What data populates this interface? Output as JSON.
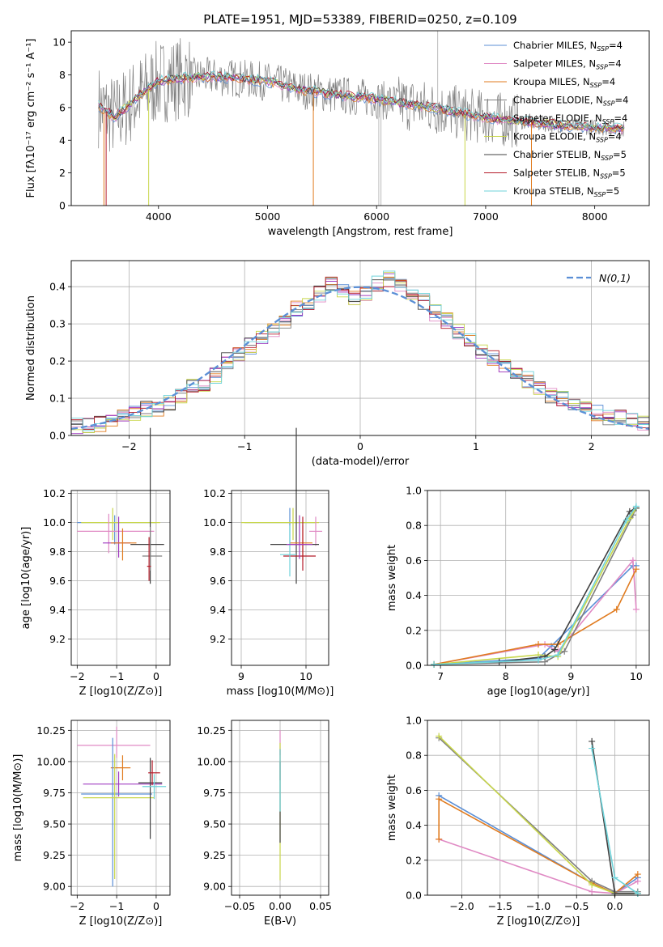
{
  "figure_title": "PLATE=1951, MJD=53389, FIBERID=0250, z=0.109",
  "chart_data": [
    {
      "id": "spectrum",
      "type": "line",
      "title": "PLATE=1951, MJD=53389, FIBERID=0250, z=0.109",
      "xlabel": "wavelength [Angstrom, rest frame]",
      "ylabel": "Flux [fλ10⁻¹⁷ erg cm⁻² s⁻¹ A⁻¹]",
      "xlim": [
        3200,
        8500
      ],
      "ylim": [
        0,
        10.7
      ],
      "xticks": [
        4000,
        5000,
        6000,
        7000,
        8000
      ],
      "yticks": [
        0,
        2,
        4,
        6,
        8,
        10
      ],
      "grid": false,
      "legend_position": "top-right",
      "observed_color": "#808080",
      "spectrum_continuum": {
        "x": [
          3450,
          3600,
          3800,
          4000,
          4200,
          4400,
          4700,
          5000,
          5300,
          5600,
          5900,
          6200,
          6500,
          6800,
          7100,
          7400,
          7700,
          8000,
          8270
        ],
        "y": [
          6.1,
          5.4,
          6.6,
          7.6,
          7.8,
          7.9,
          7.8,
          7.6,
          7.1,
          6.8,
          6.6,
          6.3,
          6.0,
          5.6,
          5.3,
          5.1,
          4.9,
          4.8,
          4.7
        ]
      },
      "series": [
        {
          "name": "Chabrier MILES, N_SSP=4",
          "label_main": "Chabrier MILES, N",
          "label_sub": "SSP",
          "label_tail": "=4",
          "color": "#5b8fd6"
        },
        {
          "name": "Salpeter MILES, N_SSP=4",
          "label_main": "Salpeter MILES, N",
          "label_sub": "SSP",
          "label_tail": "=4",
          "color": "#e08ac4"
        },
        {
          "name": "Kroupa MILES, N_SSP=4",
          "label_main": "Kroupa MILES, N",
          "label_sub": "SSP",
          "label_tail": "=4",
          "color": "#e07b1f"
        },
        {
          "name": "Chabrier ELODIE, N_SSP=4",
          "label_main": "Chabrier ELODIE, N",
          "label_sub": "SSP",
          "label_tail": "=4",
          "color": "#7f7f7f"
        },
        {
          "name": "Salpeter ELODIE, N_SSP=4",
          "label_main": "Salpeter ELODIE, N",
          "label_sub": "SSP",
          "label_tail": "=4",
          "color": "#a03cc0"
        },
        {
          "name": "Kroupa ELODIE, N_SSP=4",
          "label_main": "Kroupa ELODIE, N",
          "label_sub": "SSP",
          "label_tail": "=4",
          "color": "#c8d64a"
        },
        {
          "name": "Chabrier STELIB, N_SSP=5",
          "label_main": "Chabrier STELIB, N",
          "label_sub": "SSP",
          "label_tail": "=5",
          "color": "#404040"
        },
        {
          "name": "Salpeter STELIB, N_SSP=5",
          "label_main": "Salpeter STELIB, N",
          "label_sub": "SSP",
          "label_tail": "=5",
          "color": "#b51c2a"
        },
        {
          "name": "Kroupa STELIB, N_SSP=5",
          "label_main": "Kroupa STELIB, N",
          "label_sub": "SSP",
          "label_tail": "=5",
          "color": "#6fd3da"
        }
      ],
      "dropouts": [
        {
          "x": 3500,
          "color": "#e07b1f"
        },
        {
          "x": 3520,
          "color": "#b51c2a"
        },
        {
          "x": 3910,
          "color": "#c8d64a"
        },
        {
          "x": 5420,
          "color": "#e07b1f"
        },
        {
          "x": 6020,
          "color": "#bbbbbb"
        },
        {
          "x": 6040,
          "color": "#bbbbbb"
        },
        {
          "x": 6810,
          "color": "#c8d64a"
        },
        {
          "x": 7420,
          "color": "#e07b1f"
        }
      ],
      "spike": {
        "x": 6560,
        "color": "#bbbbbb"
      }
    },
    {
      "id": "residuals",
      "type": "histogram",
      "xlabel": "(data-model)/error",
      "ylabel": "Normed distribution",
      "xlim": [
        -2.5,
        2.5
      ],
      "ylim": [
        0,
        0.47
      ],
      "xticks": [
        -2,
        -1,
        0,
        1,
        2
      ],
      "yticks": [
        0.0,
        0.1,
        0.2,
        0.3,
        0.4
      ],
      "grid": true,
      "legend_position": "top-right",
      "reference_curve": {
        "name": "N(0,1)",
        "color": "#5b8fd6"
      },
      "bin_width": 0.1,
      "series_colors": [
        "#5b8fd6",
        "#e08ac4",
        "#e07b1f",
        "#7f7f7f",
        "#a03cc0",
        "#c8d64a",
        "#404040",
        "#b51c2a",
        "#6fd3da"
      ],
      "bins_example": {
        "x_start": [
          -2.5,
          -2.4,
          -2.3,
          -2.2,
          -2.1,
          -2.0,
          -1.9,
          -1.8,
          -1.7,
          -1.6,
          -1.5,
          -1.4,
          -1.3,
          -1.2,
          -1.1,
          -1.0,
          -0.9,
          -0.8,
          -0.7,
          -0.6,
          -0.5,
          -0.4,
          -0.3,
          -0.2,
          -0.1,
          0.0,
          0.1,
          0.2,
          0.3,
          0.4,
          0.5,
          0.6,
          0.7,
          0.8,
          0.9,
          1.0,
          1.1,
          1.2,
          1.3,
          1.4,
          1.5,
          1.6,
          1.7,
          1.8,
          1.9,
          2.0,
          2.1,
          2.2,
          2.3,
          2.4
        ],
        "values": [
          0.025,
          0.03,
          0.03,
          0.045,
          0.05,
          0.06,
          0.07,
          0.07,
          0.09,
          0.11,
          0.13,
          0.14,
          0.16,
          0.2,
          0.22,
          0.24,
          0.26,
          0.28,
          0.31,
          0.34,
          0.35,
          0.38,
          0.41,
          0.39,
          0.37,
          0.38,
          0.41,
          0.42,
          0.4,
          0.38,
          0.36,
          0.33,
          0.31,
          0.28,
          0.26,
          0.23,
          0.21,
          0.19,
          0.16,
          0.15,
          0.13,
          0.11,
          0.1,
          0.08,
          0.07,
          0.06,
          0.05,
          0.05,
          0.04,
          0.035
        ]
      }
    },
    {
      "id": "age_vs_z",
      "type": "errorbar",
      "xlabel": "Z [log10(Z/Z⊙)]",
      "ylabel": "age [log10(age/yr)]",
      "xlim": [
        -2.15,
        0.35
      ],
      "ylim": [
        9.02,
        10.22
      ],
      "xticks": [
        -2,
        -1,
        0
      ],
      "yticks": [
        9.2,
        9.4,
        9.6,
        9.8,
        10.0,
        10.2
      ],
      "grid": true,
      "points": [
        {
          "x": -1.05,
          "y": 10.0,
          "xerr": [
            0.95,
            1.05
          ],
          "yerr": [
            0.15,
            0.05
          ],
          "color": "#5b8fd6"
        },
        {
          "x": -1.1,
          "y": 10.0,
          "xerr": [
            0.8,
            1.2
          ],
          "yerr": [
            0.12,
            0.1
          ],
          "color": "#c8d64a"
        },
        {
          "x": -1.2,
          "y": 9.94,
          "xerr": [
            0.8,
            1.15
          ],
          "yerr": [
            0.15,
            0.12
          ],
          "color": "#e08ac4"
        },
        {
          "x": -0.95,
          "y": 9.86,
          "xerr": [
            0.4,
            0.3
          ],
          "yerr": [
            0.1,
            0.18
          ],
          "color": "#a03cc0"
        },
        {
          "x": -0.85,
          "y": 9.86,
          "xerr": [
            0.3,
            0.35
          ],
          "yerr": [
            0.12,
            0.1
          ],
          "color": "#e07b1f"
        },
        {
          "x": -0.15,
          "y": 9.85,
          "xerr": [
            0.5,
            0.35
          ],
          "yerr": [
            0.27,
            0.8
          ],
          "color": "#404040"
        },
        {
          "x": -0.15,
          "y": 9.77,
          "xerr": [
            0.2,
            0.3
          ],
          "yerr": [
            0.1,
            0.2
          ],
          "color": "#7f7f7f"
        },
        {
          "x": -0.18,
          "y": 9.7,
          "xerr": [
            0.05,
            0.05
          ],
          "yerr": [
            0.1,
            0.2
          ],
          "color": "#b51c2a"
        }
      ]
    },
    {
      "id": "age_vs_mass",
      "type": "errorbar",
      "xlabel": "mass [log10(M/M⊙)]",
      "ylabel": "",
      "xlim": [
        8.85,
        10.35
      ],
      "ylim": [
        9.02,
        10.22
      ],
      "xticks": [
        9,
        10
      ],
      "yticks": [
        9.2,
        9.4,
        9.6,
        9.8,
        10.0,
        10.2
      ],
      "grid": true,
      "points": [
        {
          "x": 9.75,
          "y": 10.0,
          "xerr": [
            0.7,
            0.4
          ],
          "yerr": [
            0.15,
            0.1
          ],
          "color": "#5b8fd6"
        },
        {
          "x": 9.8,
          "y": 10.0,
          "xerr": [
            0.8,
            0.4
          ],
          "yerr": [
            0.12,
            0.1
          ],
          "color": "#c8d64a"
        },
        {
          "x": 10.15,
          "y": 9.94,
          "xerr": [
            0.1,
            0.1
          ],
          "yerr": [
            0.1,
            0.1
          ],
          "color": "#e08ac4"
        },
        {
          "x": 9.85,
          "y": 9.85,
          "xerr": [
            0.4,
            0.35
          ],
          "yerr": [
            0.27,
            0.8
          ],
          "color": "#404040"
        },
        {
          "x": 9.95,
          "y": 9.86,
          "xerr": [
            0.2,
            0.15
          ],
          "yerr": [
            0.12,
            0.12
          ],
          "color": "#e07b1f"
        },
        {
          "x": 9.95,
          "y": 9.77,
          "xerr": [
            0.3,
            0.2
          ],
          "yerr": [
            0.1,
            0.27
          ],
          "color": "#b51c2a"
        },
        {
          "x": 9.75,
          "y": 9.78,
          "xerr": [
            0.15,
            0.1
          ],
          "yerr": [
            0.15,
            0.2
          ],
          "color": "#6fd3da"
        },
        {
          "x": 9.9,
          "y": 9.85,
          "xerr": [
            0.2,
            0.2
          ],
          "yerr": [
            0.1,
            0.2
          ],
          "color": "#a03cc0"
        }
      ]
    },
    {
      "id": "weight_vs_age",
      "type": "line",
      "xlabel": "age [log10(age/yr)]",
      "ylabel": "mass weight",
      "xlim": [
        6.8,
        10.2
      ],
      "ylim": [
        0,
        1.0
      ],
      "xticks": [
        7,
        8,
        9,
        10
      ],
      "yticks": [
        0.0,
        0.2,
        0.4,
        0.6,
        0.8,
        1.0
      ],
      "grid": true,
      "series": [
        {
          "color": "#5b8fd6",
          "x": [
            6.9,
            8.5,
            8.7,
            9.95,
            10.0
          ],
          "y": [
            0.005,
            0.04,
            0.11,
            0.57,
            0.57
          ]
        },
        {
          "color": "#e08ac4",
          "x": [
            6.9,
            8.6,
            8.8,
            9.95,
            10.0
          ],
          "y": [
            0.005,
            0.12,
            0.08,
            0.6,
            0.32
          ]
        },
        {
          "color": "#e07b1f",
          "x": [
            6.9,
            8.5,
            8.8,
            9.7,
            10.0
          ],
          "y": [
            0.005,
            0.12,
            0.12,
            0.32,
            0.55
          ]
        },
        {
          "color": "#7f7f7f",
          "x": [
            6.9,
            8.6,
            8.9,
            9.95,
            10.0
          ],
          "y": [
            0.005,
            0.02,
            0.08,
            0.86,
            0.9
          ]
        },
        {
          "color": "#c8d64a",
          "x": [
            6.9,
            8.5,
            8.8,
            9.9,
            10.0
          ],
          "y": [
            0.005,
            0.06,
            0.05,
            0.84,
            0.9
          ]
        },
        {
          "color": "#404040",
          "x": [
            7.9,
            8.6,
            8.75,
            9.9,
            10.0
          ],
          "y": [
            0.02,
            0.05,
            0.09,
            0.88,
            0.9
          ]
        },
        {
          "color": "#6fd3da",
          "x": [
            6.9,
            8.5,
            8.8,
            9.85,
            10.0
          ],
          "y": [
            0.005,
            0.03,
            0.06,
            0.83,
            0.91
          ]
        }
      ]
    },
    {
      "id": "mass_vs_z",
      "type": "errorbar",
      "xlabel": "Z [log10(Z/Z⊙)]",
      "ylabel": "mass [log10(M/M⊙)]",
      "xlim": [
        -2.15,
        0.35
      ],
      "ylim": [
        8.93,
        10.33
      ],
      "xticks": [
        -2,
        -1,
        0
      ],
      "yticks": [
        9.0,
        9.25,
        9.5,
        9.75,
        10.0,
        10.25
      ],
      "grid": true,
      "points": [
        {
          "x": -1.0,
          "y": 10.13,
          "xerr": [
            1.0,
            0.85
          ],
          "yerr": [
            0.1,
            0.15
          ],
          "color": "#e08ac4"
        },
        {
          "x": -0.85,
          "y": 9.95,
          "xerr": [
            0.3,
            0.2
          ],
          "yerr": [
            0.1,
            0.1
          ],
          "color": "#e07b1f"
        },
        {
          "x": -0.95,
          "y": 9.82,
          "xerr": [
            0.9,
            1.1
          ],
          "yerr": [
            0.1,
            0.1
          ],
          "color": "#a03cc0"
        },
        {
          "x": -1.1,
          "y": 9.74,
          "xerr": [
            0.8,
            1.0
          ],
          "yerr": [
            0.74,
            0.45
          ],
          "color": "#5b8fd6"
        },
        {
          "x": -1.05,
          "y": 9.71,
          "xerr": [
            0.8,
            1.0
          ],
          "yerr": [
            0.65,
            0.35
          ],
          "color": "#c8d64a"
        },
        {
          "x": -0.15,
          "y": 9.83,
          "xerr": [
            0.3,
            0.3
          ],
          "yerr": [
            0.45,
            0.2
          ],
          "color": "#404040"
        },
        {
          "x": -0.1,
          "y": 9.91,
          "xerr": [
            0.1,
            0.2
          ],
          "yerr": [
            0.1,
            0.1
          ],
          "color": "#b51c2a"
        },
        {
          "x": -0.05,
          "y": 9.8,
          "xerr": [
            0.3,
            0.3
          ],
          "yerr": [
            0.1,
            0.1
          ],
          "color": "#6fd3da"
        }
      ]
    },
    {
      "id": "mass_vs_ebv",
      "type": "errorbar",
      "xlabel": "E(B-V)",
      "ylabel": "",
      "xlim": [
        -0.06,
        0.06
      ],
      "ylim": [
        8.93,
        10.33
      ],
      "xticks": [
        -0.05,
        0.0,
        0.05
      ],
      "xtick_labels": [
        "−0.05",
        "0.00",
        "0.05"
      ],
      "yticks": [
        9.0,
        9.25,
        9.5,
        9.75,
        10.0,
        10.25
      ],
      "grid": true,
      "points": [
        {
          "x": 0.0,
          "y": 10.15,
          "xerr": [
            0,
            0
          ],
          "yerr": [
            0.1,
            0.1
          ],
          "color": "#e08ac4"
        },
        {
          "x": 0.0,
          "y": 9.95,
          "xerr": [
            0,
            0
          ],
          "yerr": [
            0.1,
            0.15
          ],
          "color": "#b51c2a"
        },
        {
          "x": 0.0,
          "y": 9.75,
          "xerr": [
            0,
            0
          ],
          "yerr": [
            0.7,
            0.4
          ],
          "color": "#c8d64a"
        },
        {
          "x": 0.0,
          "y": 9.7,
          "xerr": [
            0,
            0
          ],
          "yerr": [
            0.35,
            0.3
          ],
          "color": "#404040"
        },
        {
          "x": 0.0,
          "y": 9.8,
          "xerr": [
            0,
            0
          ],
          "yerr": [
            0.2,
            0.3
          ],
          "color": "#6fd3da"
        }
      ]
    },
    {
      "id": "weight_vs_z",
      "type": "line",
      "xlabel": "Z [log10(Z/Z⊙)]",
      "ylabel": "mass weight",
      "xlim": [
        -2.45,
        0.45
      ],
      "ylim": [
        0,
        1.0
      ],
      "xticks": [
        -2.0,
        -1.5,
        -1.0,
        -0.5,
        0.0
      ],
      "xtick_labels": [
        "−2.0",
        "−1.5",
        "−1.0",
        "−0.5",
        "0.0"
      ],
      "yticks": [
        0.0,
        0.2,
        0.4,
        0.6,
        0.8,
        1.0
      ],
      "grid": true,
      "series": [
        {
          "color": "#5b8fd6",
          "x": [
            -2.3,
            -0.3,
            0.0,
            0.3
          ],
          "y": [
            0.57,
            0.07,
            0.01,
            0.1
          ]
        },
        {
          "color": "#e08ac4",
          "x": [
            -2.3,
            -0.3,
            0.0,
            0.3
          ],
          "y": [
            0.32,
            0.02,
            0.01,
            0.08
          ]
        },
        {
          "color": "#e07b1f",
          "x": [
            -2.3,
            -2.3,
            -0.3,
            0.0,
            0.3
          ],
          "y": [
            0.32,
            0.55,
            0.07,
            0.01,
            0.12
          ]
        },
        {
          "color": "#7f7f7f",
          "x": [
            -2.3,
            -0.3,
            0.0,
            0.3
          ],
          "y": [
            0.9,
            0.08,
            0.02,
            0.02
          ]
        },
        {
          "color": "#c8d64a",
          "x": [
            -2.3,
            -0.3,
            0.0,
            0.3
          ],
          "y": [
            0.91,
            0.06,
            0.01,
            0.01
          ]
        },
        {
          "color": "#404040",
          "x": [
            -0.3,
            0.0,
            0.3
          ],
          "y": [
            0.88,
            0.01,
            0.01
          ]
        },
        {
          "color": "#6fd3da",
          "x": [
            -0.3,
            0.0,
            0.3
          ],
          "y": [
            0.84,
            0.1,
            0.01
          ]
        }
      ]
    }
  ]
}
